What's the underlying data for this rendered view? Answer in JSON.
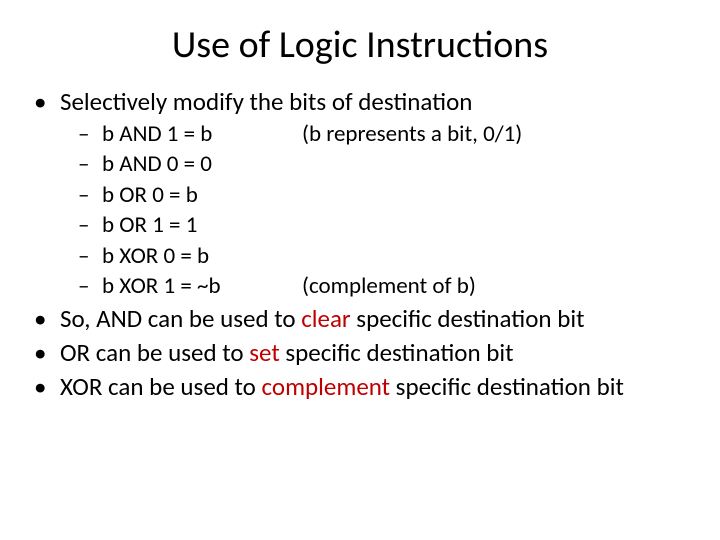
{
  "title": "Use of Logic Instructions",
  "colors": {
    "text": "#000000",
    "highlight": "#c00000",
    "background": "#ffffff"
  },
  "typography": {
    "title_fontsize": 38,
    "body_fontsize": 25,
    "sub_fontsize": 23,
    "font_family": "Calibri"
  },
  "bullets": {
    "lvl1_glyph": "•",
    "lvl2_glyph": "–"
  },
  "main_point": "Selectively modify the bits of destination",
  "rules": [
    {
      "expr": "b AND 1 = b",
      "note": "(b represents a bit, 0/1)"
    },
    {
      "expr": "b AND 0 = 0",
      "note": ""
    },
    {
      "expr": "b OR 0 = b",
      "note": ""
    },
    {
      "expr": "b OR 1 = 1",
      "note": ""
    },
    {
      "expr": "b XOR 0 = b",
      "note": ""
    },
    {
      "expr": "b XOR 1 = ~b",
      "note": "(complement of b)"
    }
  ],
  "summary": [
    {
      "pre": "So, AND can be used to ",
      "hl": "clear",
      "post": " specific destination bit"
    },
    {
      "pre": "OR can be used to ",
      "hl": "set",
      "post": " specific destination bit"
    },
    {
      "pre": "XOR can be used to ",
      "hl": "complement",
      "post": " specific destination bit"
    }
  ]
}
